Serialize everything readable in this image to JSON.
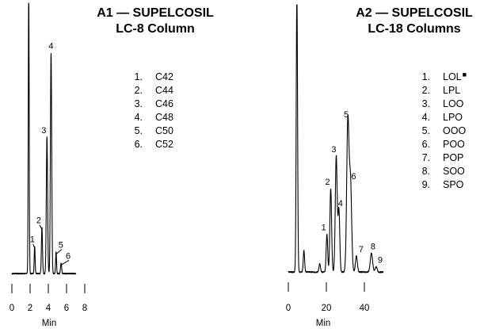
{
  "chart_data": [
    {
      "type": "line",
      "title": "A1 — SUPELCOSIL",
      "subtitle": "LC-8 Column",
      "xlabel": "Min",
      "ylabel": "",
      "xlim": [
        0,
        8
      ],
      "ylim": [
        0,
        100
      ],
      "xticks": [
        "0",
        "2",
        "4",
        "6",
        "8"
      ],
      "grid": false,
      "legend": [
        {
          "number": "1.",
          "name": "C42"
        },
        {
          "number": "2.",
          "name": "C44"
        },
        {
          "number": "3.",
          "name": "C46"
        },
        {
          "number": "4.",
          "name": "C48"
        },
        {
          "number": "5.",
          "name": "C50"
        },
        {
          "number": "6.",
          "name": "C52"
        }
      ],
      "baseline": 2,
      "solvent_peak": {
        "x": 1.85,
        "height": 104,
        "width": 0.05
      },
      "peaks": [
        {
          "label": "1",
          "x": 2.5,
          "height": 10,
          "width": 0.05
        },
        {
          "label": "2",
          "x": 3.3,
          "height": 17,
          "width": 0.06
        },
        {
          "label": "3",
          "x": 3.85,
          "height": 50,
          "width": 0.07
        },
        {
          "label": "4",
          "x": 4.3,
          "height": 81,
          "width": 0.07
        },
        {
          "label": "5",
          "x": 4.85,
          "height": 8,
          "width": 0.05
        },
        {
          "label": "6",
          "x": 5.4,
          "height": 4,
          "width": 0.06
        }
      ]
    },
    {
      "type": "line",
      "title": "A2 — SUPELCOSIL",
      "subtitle": "LC-18 Columns",
      "xlabel": "Min",
      "ylabel": "",
      "xlim": [
        0,
        50
      ],
      "ylim": [
        0,
        100
      ],
      "xticks": [
        "0",
        "20",
        "40"
      ],
      "grid": false,
      "legend": [
        {
          "number": "1.",
          "name": "LOL",
          "marker": "■"
        },
        {
          "number": "2.",
          "name": "LPL"
        },
        {
          "number": "3.",
          "name": "LOO"
        },
        {
          "number": "4.",
          "name": "LPO"
        },
        {
          "number": "5.",
          "name": "OOO"
        },
        {
          "number": "6.",
          "name": "POO"
        },
        {
          "number": "7.",
          "name": "POP"
        },
        {
          "number": "8.",
          "name": "SOO"
        },
        {
          "number": "9.",
          "name": "SPO"
        }
      ],
      "baseline": 2,
      "solvent_peak": {
        "x": 4.5,
        "height": 104,
        "width": 0.35
      },
      "minor_peaks": [
        {
          "x": 8.2,
          "height": 8,
          "width": 0.35
        },
        {
          "x": 16.5,
          "height": 3,
          "width": 0.4
        }
      ],
      "peaks": [
        {
          "label": "1",
          "x": 20.3,
          "height": 14,
          "width": 0.4
        },
        {
          "label": "2",
          "x": 22.3,
          "height": 31,
          "width": 0.45
        },
        {
          "label": "3",
          "x": 25.2,
          "height": 43,
          "width": 0.5
        },
        {
          "label": "4",
          "x": 26.6,
          "height": 23,
          "width": 0.45
        },
        {
          "label": "5",
          "x": 31.3,
          "height": 56,
          "width": 0.6
        },
        {
          "label": "6",
          "x": 32.7,
          "height": 33,
          "width": 0.6
        },
        {
          "label": "7",
          "x": 35.8,
          "height": 6,
          "width": 0.5
        },
        {
          "label": "8",
          "x": 43.7,
          "height": 7,
          "width": 0.6
        },
        {
          "label": "9",
          "x": 46.2,
          "height": 2,
          "width": 0.5
        }
      ]
    }
  ]
}
